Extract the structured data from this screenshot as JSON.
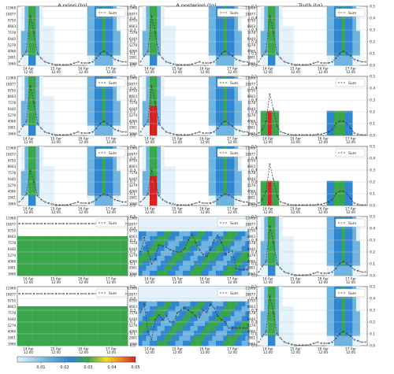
{
  "figure": {
    "column_titles": [
      "A priori (tg)",
      "A posteriori (tg)",
      "Truth (tg)"
    ],
    "legend_label": "Sum",
    "x_tick_labels": [
      [
        "14 Apr",
        "12:00"
      ],
      [
        "15 Apr",
        "12:00"
      ],
      [
        "16 Apr",
        "12:00"
      ],
      [
        "17 Apr",
        "12:00"
      ]
    ],
    "left_axis_ticks": [
      "11968",
      "10877",
      "9750",
      "8603",
      "7578",
      "6440",
      "5279",
      "4066",
      "2801",
      "1666"
    ],
    "right_axis_ticks": [
      "0.0",
      "0.1",
      "0.2",
      "0.3",
      "0.4",
      "0.5"
    ],
    "colorbar_ticks": [
      "0.01",
      "0.02",
      "0.03",
      "0.04",
      "0.05"
    ]
  },
  "colors": {
    "heat_low": "#e3f2fb",
    "heat_mid_low": "#6fb3e0",
    "heat_mid": "#2e86d0",
    "heat_green": "#3aa64a",
    "heat_yellow": "#f0e020",
    "heat_orange": "#f08020",
    "heat_red": "#d82020",
    "line": "#333333"
  },
  "chart_data": {
    "type": "heatmap",
    "rows": 5,
    "cols": 3,
    "x_range": [
      "14 Apr 00:00",
      "18 Apr 00:00"
    ],
    "left_ylim": [
      1666,
      11968
    ],
    "right_ylim": [
      0,
      0.5
    ],
    "colorbar_range": [
      0,
      0.05
    ],
    "series_name": "Sum",
    "sum_shapes": {
      "pulse": [
        0.03,
        0.08,
        0.12,
        0.42,
        0.28,
        0.1,
        0.06,
        0.03,
        0.02,
        0.01,
        0.005,
        0.005,
        0.005,
        0.005,
        0.01,
        0.02,
        0.03,
        0.02,
        0.02,
        0.02,
        0.03,
        0.06,
        0.1,
        0.12,
        0.1,
        0.08,
        0.05,
        0.04,
        0.03,
        0.03
      ],
      "pulse_small": [
        0.03,
        0.06,
        0.1,
        0.3,
        0.2,
        0.08,
        0.05,
        0.03,
        0.02,
        0.01,
        0.005,
        0.005,
        0.005,
        0.005,
        0.01,
        0.02,
        0.03,
        0.02,
        0.02,
        0.02,
        0.03,
        0.05,
        0.08,
        0.1,
        0.09,
        0.07,
        0.05,
        0.04,
        0.03,
        0.03
      ],
      "truth_pulse": [
        0.02,
        0.05,
        0.12,
        0.35,
        0.22,
        0.08,
        0.03,
        0.02,
        0.01,
        0.005,
        0.005,
        0.005,
        0.005,
        0.005,
        0.005,
        0.005,
        0.01,
        0.01,
        0.02,
        0.03,
        0.05,
        0.1,
        0.12,
        0.12,
        0.1,
        0.06,
        0.02,
        0.01,
        0.005,
        0.005
      ],
      "flat": [
        0.44,
        0.44,
        0.44,
        0.44,
        0.44,
        0.44,
        0.44,
        0.44,
        0.44,
        0.44,
        0.44,
        0.44,
        0.44,
        0.44,
        0.44,
        0.44,
        0.44,
        0.44,
        0.44,
        0.44,
        0.44,
        0.44,
        0.44,
        0.44,
        0.44,
        0.44,
        0.44,
        0.44,
        0.44,
        0.44
      ],
      "posterior_wave": [
        0.2,
        0.32,
        0.2,
        0.1,
        0.14,
        0.26,
        0.25,
        0.24,
        0.22,
        0.21,
        0.2,
        0.2,
        0.23,
        0.3,
        0.35,
        0.28,
        0.22,
        0.18,
        0.16,
        0.22,
        0.3,
        0.34,
        0.28,
        0.18,
        0.2,
        0.21,
        0.06,
        0.05,
        0.05,
        0.05
      ],
      "posterior_wave2": [
        0.28,
        0.35,
        0.12,
        0.05,
        0.22,
        0.26,
        0.22,
        0.25,
        0.2,
        0.2,
        0.28,
        0.3,
        0.32,
        0.3,
        0.28,
        0.25,
        0.24,
        0.3,
        0.28,
        0.35,
        0.32,
        0.25,
        0.22,
        0.2,
        0.15,
        0.15,
        0.15,
        0.15,
        0.15,
        0.15
      ]
    },
    "panels": [
      {
        "row": 0,
        "col": 0,
        "sum_shape": "pulse",
        "field": "sparse"
      },
      {
        "row": 0,
        "col": 1,
        "sum_shape": "pulse",
        "field": "sparse"
      },
      {
        "row": 0,
        "col": 2,
        "sum_shape": "pulse",
        "field": "sparse"
      },
      {
        "row": 1,
        "col": 0,
        "sum_shape": "pulse",
        "field": "sparse"
      },
      {
        "row": 1,
        "col": 1,
        "sum_shape": "pulse",
        "field": "sparse_hot"
      },
      {
        "row": 1,
        "col": 2,
        "sum_shape": "truth_pulse",
        "field": "truth"
      },
      {
        "row": 2,
        "col": 0,
        "sum_shape": "pulse_small",
        "field": "sparse"
      },
      {
        "row": 2,
        "col": 1,
        "sum_shape": "pulse_small",
        "field": "sparse_hot"
      },
      {
        "row": 2,
        "col": 2,
        "sum_shape": "truth_pulse",
        "field": "truth"
      },
      {
        "row": 3,
        "col": 0,
        "sum_shape": "flat",
        "field": "prior_band"
      },
      {
        "row": 3,
        "col": 1,
        "sum_shape": "posterior_wave",
        "field": "posterior_dense"
      },
      {
        "row": 3,
        "col": 2,
        "sum_shape": "pulse",
        "field": "sparse"
      },
      {
        "row": 4,
        "col": 0,
        "sum_shape": "flat",
        "field": "prior_band"
      },
      {
        "row": 4,
        "col": 1,
        "sum_shape": "posterior_wave2",
        "field": "posterior_dense"
      },
      {
        "row": 4,
        "col": 2,
        "sum_shape": "pulse",
        "field": "sparse"
      }
    ]
  }
}
